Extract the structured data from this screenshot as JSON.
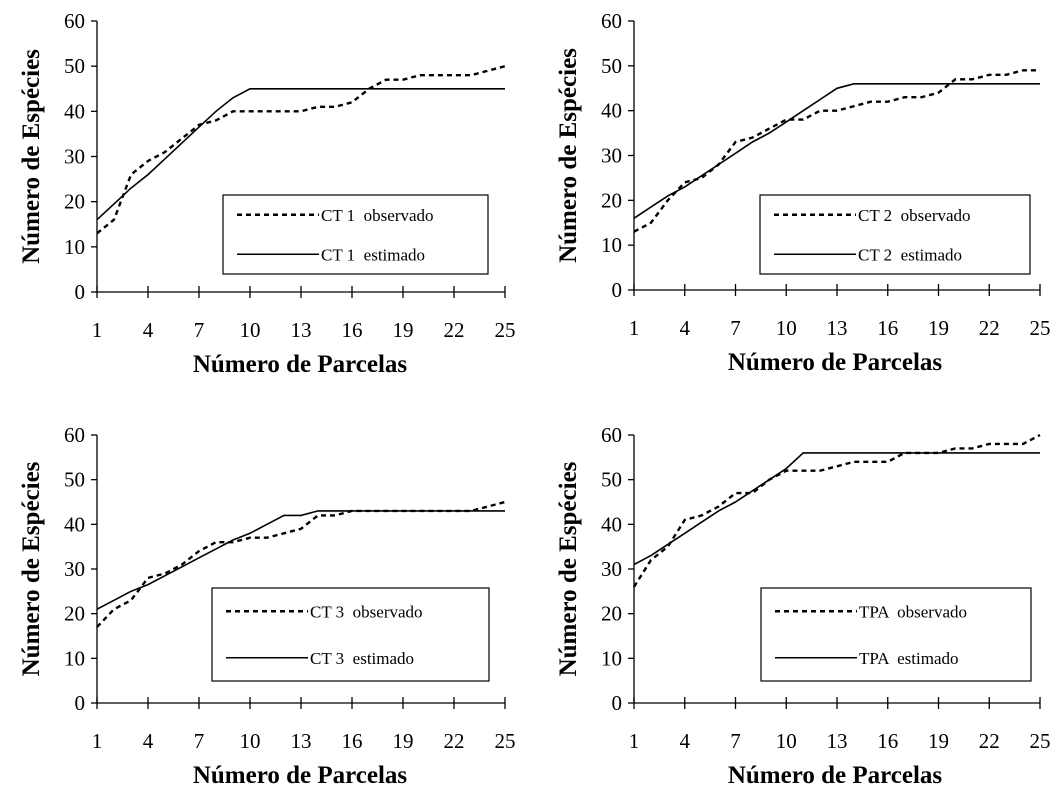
{
  "chart_data": [
    {
      "type": "line",
      "xlabel": "Número de Parcelas",
      "ylabel": "Número de Espécies",
      "xticks": [
        1,
        4,
        7,
        10,
        13,
        16,
        19,
        22,
        25
      ],
      "yticks": [
        0,
        10,
        20,
        30,
        40,
        50,
        60
      ],
      "xlim": [
        1,
        25
      ],
      "ylim": [
        0,
        60
      ],
      "legend_position": "center-right",
      "series": [
        {
          "name": "CT 1  observado",
          "style": "dashed",
          "x": [
            1,
            2,
            3,
            4,
            5,
            6,
            7,
            8,
            9,
            10,
            11,
            12,
            13,
            14,
            15,
            16,
            17,
            18,
            19,
            20,
            21,
            22,
            23,
            24,
            25
          ],
          "y": [
            13,
            16,
            26,
            29,
            31,
            34,
            37,
            38,
            40,
            40,
            40,
            40,
            40,
            41,
            41,
            42,
            45,
            47,
            47,
            48,
            48,
            48,
            48,
            49,
            50
          ]
        },
        {
          "name": "CT 1  estimado",
          "style": "solid",
          "x": [
            1,
            2,
            3,
            4,
            5,
            6,
            7,
            8,
            9,
            10,
            25
          ],
          "y": [
            16,
            19.5,
            23,
            26,
            29.5,
            33,
            36.5,
            40,
            43,
            45,
            45
          ]
        }
      ]
    },
    {
      "type": "line",
      "xlabel": "Número de Parcelas",
      "ylabel": "Número de Espécies",
      "xticks": [
        1,
        4,
        7,
        10,
        13,
        16,
        19,
        22,
        25
      ],
      "yticks": [
        0,
        10,
        20,
        30,
        40,
        50,
        60
      ],
      "xlim": [
        1,
        25
      ],
      "ylim": [
        0,
        60
      ],
      "legend_position": "center-right",
      "series": [
        {
          "name": "CT 2  observado",
          "style": "dashed",
          "x": [
            1,
            2,
            3,
            4,
            5,
            6,
            7,
            8,
            9,
            10,
            11,
            12,
            13,
            14,
            15,
            16,
            17,
            18,
            19,
            20,
            21,
            22,
            23,
            24,
            25
          ],
          "y": [
            13,
            15,
            20,
            24,
            25,
            28,
            33,
            34,
            36,
            38,
            38,
            40,
            40,
            41,
            42,
            42,
            43,
            43,
            44,
            47,
            47,
            48,
            48,
            49,
            49
          ]
        },
        {
          "name": "CT 2  estimado",
          "style": "solid",
          "x": [
            1,
            2,
            3,
            4,
            5,
            6,
            7,
            8,
            9,
            10,
            11,
            12,
            13,
            14,
            25
          ],
          "y": [
            16,
            18.5,
            21,
            23,
            25.5,
            28,
            30.5,
            33,
            35,
            37.5,
            40,
            42.5,
            45,
            46,
            46
          ]
        }
      ]
    },
    {
      "type": "line",
      "xlabel": "Número de Parcelas",
      "ylabel": "Número de Espécies",
      "xticks": [
        1,
        4,
        7,
        10,
        13,
        16,
        19,
        22,
        25
      ],
      "yticks": [
        0,
        10,
        20,
        30,
        40,
        50,
        60
      ],
      "xlim": [
        1,
        25
      ],
      "ylim": [
        0,
        60
      ],
      "legend_position": "center-right",
      "series": [
        {
          "name": "CT 3  observado",
          "style": "dashed",
          "x": [
            1,
            2,
            3,
            4,
            5,
            6,
            7,
            8,
            9,
            10,
            11,
            12,
            13,
            14,
            15,
            16,
            17,
            18,
            19,
            20,
            21,
            22,
            23,
            24,
            25
          ],
          "y": [
            17,
            21,
            23,
            28,
            29,
            31,
            34,
            36,
            36,
            37,
            37,
            38,
            39,
            42,
            42,
            43,
            43,
            43,
            43,
            43,
            43,
            43,
            43,
            44,
            45
          ]
        },
        {
          "name": "CT 3  estimado",
          "style": "solid",
          "x": [
            1,
            2,
            3,
            4,
            5,
            6,
            7,
            8,
            9,
            10,
            11,
            12,
            13,
            14,
            25
          ],
          "y": [
            21,
            23,
            25,
            26.5,
            28.5,
            30.5,
            32.5,
            34.5,
            36.5,
            38,
            40,
            42,
            42,
            43,
            43
          ]
        }
      ]
    },
    {
      "type": "line",
      "xlabel": "Número de Parcelas",
      "ylabel": "Número de Espécies",
      "xticks": [
        1,
        4,
        7,
        10,
        13,
        16,
        19,
        22,
        25
      ],
      "yticks": [
        0,
        10,
        20,
        30,
        40,
        50,
        60
      ],
      "xlim": [
        1,
        25
      ],
      "ylim": [
        0,
        60
      ],
      "legend_position": "center-right",
      "series": [
        {
          "name": "TPA  observado",
          "style": "dashed",
          "x": [
            1,
            2,
            3,
            4,
            5,
            6,
            7,
            8,
            9,
            10,
            11,
            12,
            13,
            14,
            15,
            16,
            17,
            18,
            19,
            20,
            21,
            22,
            23,
            24,
            25
          ],
          "y": [
            26,
            32,
            35,
            41,
            42,
            44,
            47,
            47,
            50,
            52,
            52,
            52,
            53,
            54,
            54,
            54,
            56,
            56,
            56,
            57,
            57,
            58,
            58,
            58,
            60
          ]
        },
        {
          "name": "TPA  estimado",
          "style": "solid",
          "x": [
            1,
            2,
            3,
            4,
            5,
            6,
            7,
            8,
            9,
            10,
            11,
            25
          ],
          "y": [
            31,
            33,
            35.5,
            38,
            40.5,
            43,
            45,
            47.5,
            50,
            52.5,
            56,
            56
          ]
        }
      ]
    }
  ]
}
